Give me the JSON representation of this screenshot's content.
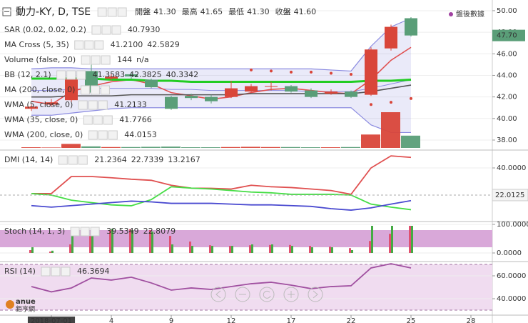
{
  "header": {
    "symbol": "動力-KY, D, TSE",
    "ohlc": [
      {
        "label": "開盤",
        "value": "41.30"
      },
      {
        "label": "最高",
        "value": "41.65"
      },
      {
        "label": "最低",
        "value": "41.30"
      },
      {
        "label": "收盤",
        "value": "41.60"
      }
    ],
    "after_hours": "盤後數據"
  },
  "logo": {
    "brand": "anue",
    "name": "鉅亨網"
  },
  "chart_data": [
    {
      "type": "candlestick",
      "categories": [
        null,
        "2018-07-01",
        null,
        null,
        "4",
        null,
        null,
        "9",
        null,
        null,
        "12",
        null,
        null,
        "17",
        null,
        null,
        "22",
        null,
        null,
        "25",
        null,
        null,
        "28"
      ],
      "open": [
        40.9,
        41.3,
        41.7,
        44.4,
        43.7,
        44.1,
        43.6,
        42.0,
        42.1,
        42.0,
        42.0,
        42.5,
        43.0,
        43.0,
        42.6,
        42.3,
        42.5,
        42.2,
        46.5,
        49.3,
        null,
        null,
        null
      ],
      "high": [
        41.3,
        41.8,
        43.9,
        45.0,
        44.1,
        44.3,
        43.7,
        42.1,
        42.3,
        42.2,
        43.5,
        43.2,
        43.4,
        43.1,
        42.8,
        42.7,
        42.6,
        46.6,
        48.7,
        49.4,
        null,
        null,
        null
      ],
      "low": [
        40.7,
        41.1,
        41.5,
        42.2,
        43.5,
        43.7,
        42.8,
        40.8,
        41.7,
        41.4,
        41.9,
        42.4,
        42.6,
        42.4,
        41.9,
        42.2,
        41.9,
        42.1,
        46.3,
        47.6,
        null,
        null,
        null
      ],
      "close": [
        41.1,
        41.5,
        43.7,
        42.4,
        43.9,
        43.9,
        42.9,
        40.9,
        41.9,
        41.6,
        42.8,
        43.0,
        43.0,
        42.5,
        42.0,
        42.5,
        42.0,
        46.4,
        48.5,
        47.7,
        null,
        null,
        null
      ],
      "volume": [
        300,
        200,
        1800,
        700,
        400,
        400,
        500,
        600,
        300,
        300,
        400,
        500,
        400,
        400,
        300,
        300,
        400,
        6000,
        16000,
        5500,
        null,
        null,
        null
      ],
      "up_color": "#d9463a",
      "down_color": "#5a9e78",
      "ylim": [
        37.27,
        50.46
      ],
      "yticks": [
        {
          "value": 38,
          "label": "38.00"
        },
        {
          "value": 40,
          "label": "40.00"
        },
        {
          "value": 42,
          "label": "42.00"
        },
        {
          "value": 44,
          "label": "44.00"
        },
        {
          "value": 46,
          "label": "46.00"
        },
        {
          "value": 48,
          "label": "48.00"
        },
        {
          "value": 50,
          "label": "50.00"
        }
      ],
      "price_tag": {
        "value": 47.7,
        "label": "47.70",
        "color": "#5a9e78"
      },
      "indicators": [
        {
          "label": "SAR (0.02, 0.02, 0.2)",
          "readouts": [
            "40.7930"
          ],
          "color": "#d9463a",
          "dots": [
            null,
            null,
            null,
            null,
            null,
            null,
            null,
            null,
            null,
            null,
            null,
            44.5,
            44.4,
            44.3,
            44.3,
            44.2,
            44.1,
            41.3,
            41.5,
            41.85,
            null,
            null,
            null
          ]
        },
        {
          "label": "MA Cross (5, 35)",
          "readouts": [
            "41.2100",
            "42.5829"
          ],
          "color": "#aaaaaa",
          "faded": true
        },
        {
          "label": "Volume (false, 20)",
          "readouts": [
            "144",
            "n/a"
          ],
          "color": "#555555"
        },
        {
          "label": "BB (12, 2.1)",
          "readouts": [
            "41.3583",
            "42.3825",
            "40.3342"
          ],
          "color": "#555555",
          "band_color": "#8a8ae0",
          "upper": [
            44.6,
            44.7,
            44.7,
            44.6,
            44.6,
            44.6,
            44.6,
            44.6,
            44.6,
            44.6,
            44.6,
            44.6,
            44.6,
            44.6,
            44.6,
            44.5,
            44.4,
            46.7,
            48.5,
            49.3,
            null,
            null,
            null
          ],
          "middle": [
            42.6,
            42.6,
            42.7,
            42.8,
            42.8,
            42.8,
            42.8,
            42.7,
            42.7,
            42.6,
            42.6,
            42.6,
            42.6,
            42.6,
            42.5,
            42.5,
            42.5,
            42.8,
            43.2,
            43.6,
            null,
            null,
            null
          ],
          "lower": [
            40.3,
            40.3,
            40.5,
            40.7,
            40.9,
            41.0,
            41.0,
            41.0,
            41.0,
            41.0,
            41.0,
            41.0,
            41.0,
            41.0,
            41.0,
            41.0,
            41.0,
            39.4,
            38.7,
            38.7,
            null,
            null,
            null
          ]
        },
        {
          "label": "MA (200, close, 0)",
          "readouts": [],
          "color": "#aaaaaa",
          "faded": true
        },
        {
          "label": "WMA (5, close, 0)",
          "readouts": [
            "41.2133"
          ],
          "color": "#e05050",
          "line": [
            41.6,
            41.3,
            42.5,
            43.0,
            43.4,
            43.6,
            43.2,
            42.4,
            42.1,
            41.8,
            42.0,
            42.4,
            42.7,
            42.8,
            42.6,
            42.4,
            42.3,
            43.6,
            45.4,
            46.6,
            null,
            null,
            null
          ]
        },
        {
          "label": "WMA (35, close, 0)",
          "readouts": [
            "41.7766"
          ],
          "color": "#555555",
          "line_color": "#22cc22",
          "line": [
            43.7,
            43.7,
            43.7,
            43.7,
            43.6,
            43.6,
            43.5,
            43.5,
            43.4,
            43.4,
            43.4,
            43.4,
            43.4,
            43.4,
            43.4,
            43.4,
            43.4,
            43.5,
            43.5,
            43.6,
            null,
            null,
            null
          ]
        },
        {
          "label": "WMA (200, close, 0)",
          "readouts": [
            "44.0153"
          ],
          "color": "#22bb22",
          "line_color": "#555555",
          "line": [
            42.0,
            42.0,
            42.1,
            42.1,
            42.1,
            42.2,
            42.2,
            42.2,
            42.2,
            42.2,
            42.2,
            42.3,
            42.3,
            42.3,
            42.3,
            42.3,
            42.3,
            42.5,
            42.8,
            43.1,
            null,
            null,
            null
          ]
        }
      ]
    },
    {
      "type": "line",
      "label": "DMI (14, 14)",
      "ylim": [
        5.4,
        50.9
      ],
      "yticks": [
        {
          "value": 40,
          "label": "40.0000"
        }
      ],
      "tag": {
        "value": 22.0125,
        "label": "22.0125"
      },
      "series": [
        {
          "readout": "21.2364",
          "color": "#e05050",
          "values": [
            23,
            23,
            34.3,
            34.3,
            33.5,
            32.5,
            31.8,
            28.5,
            26.6,
            26.5,
            26,
            28.5,
            27.5,
            27,
            26,
            25,
            22.5,
            40,
            48,
            47,
            null,
            null,
            null
          ]
        },
        {
          "readout": "22.7339",
          "color": "#44dd44",
          "values": [
            23,
            22,
            18.6,
            17,
            15.5,
            14.9,
            19,
            27.5,
            26.6,
            26,
            25,
            24,
            23.5,
            22.5,
            22.5,
            22.5,
            22,
            16,
            14,
            12.3,
            null,
            null,
            null
          ]
        },
        {
          "readout": "13.2167",
          "color": "#4a4ad0",
          "values": [
            15,
            14,
            15,
            16,
            17,
            18,
            17.5,
            16.5,
            16.5,
            16.5,
            16,
            15.5,
            15.5,
            15,
            14.5,
            13,
            12,
            13.5,
            16,
            18.3,
            null,
            null,
            null
          ]
        }
      ]
    },
    {
      "type": "bar",
      "label": "Stoch (14, 1, 3)",
      "ylim": [
        -27.5,
        105
      ],
      "yticks": [
        {
          "value": 100,
          "label": "100.0000"
        },
        {
          "value": 0,
          "label": "0.0000"
        }
      ],
      "band": [
        20,
        80
      ],
      "band_color": "#d9a8d9",
      "series": [
        {
          "readout": "39.5349",
          "color": "#e05070",
          "values": [
            10,
            5,
            30,
            60,
            80,
            83,
            80,
            60,
            40,
            27,
            25,
            27,
            28,
            28,
            25,
            22,
            17,
            42,
            67,
            95,
            null,
            null,
            null
          ]
        },
        {
          "readout": "22.8079",
          "color": "#44aa44",
          "values": [
            20,
            8,
            60,
            85,
            85,
            80,
            75,
            30,
            25,
            25,
            25,
            30,
            30,
            25,
            20,
            20,
            10,
            95,
            95,
            95,
            null,
            null,
            null
          ]
        }
      ]
    },
    {
      "type": "line",
      "label": "RSI (14)",
      "ylim": [
        26.25,
        71.25
      ],
      "yticks": [
        {
          "value": 60,
          "label": "60.0000"
        },
        {
          "value": 40,
          "label": "40.0000"
        }
      ],
      "band": [
        30,
        70
      ],
      "band_color": "#f0dcf0",
      "series": [
        {
          "readout": "46.3694",
          "color": "#a050a0",
          "values": [
            50.6,
            46,
            49.4,
            58.1,
            56.3,
            58.8,
            53.8,
            47.5,
            49.4,
            48.1,
            50.6,
            53.1,
            54.4,
            51.9,
            48.8,
            50.6,
            51.3,
            66.9,
            70.6,
            66.9,
            null,
            null,
            null
          ]
        }
      ]
    }
  ]
}
